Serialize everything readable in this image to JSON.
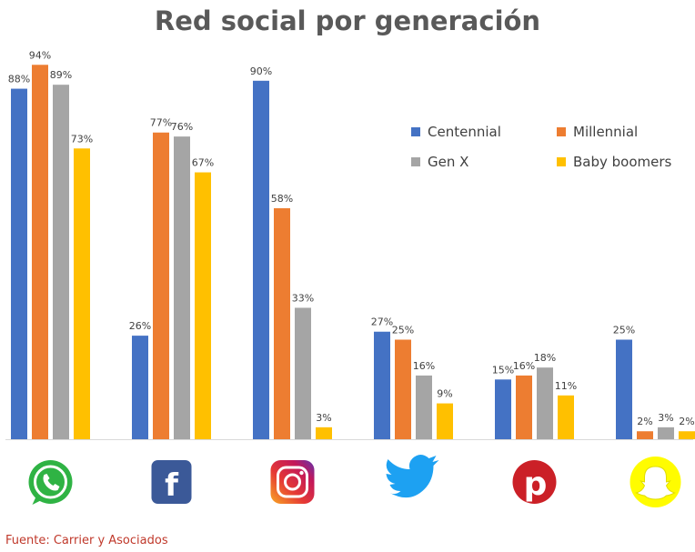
{
  "chart_data": {
    "type": "bar",
    "title": "Red social por generación",
    "categories": [
      "WhatsApp",
      "Facebook",
      "Instagram",
      "Twitter",
      "Pinterest",
      "Snapchat"
    ],
    "series": [
      {
        "name": "Centennial",
        "color": "#4472C4",
        "values": [
          88,
          26,
          90,
          27,
          15,
          25
        ]
      },
      {
        "name": "Millennial",
        "color": "#ED7D31",
        "values": [
          94,
          77,
          58,
          25,
          16,
          2
        ]
      },
      {
        "name": "Gen X",
        "color": "#A5A5A5",
        "values": [
          89,
          76,
          33,
          16,
          18,
          3
        ]
      },
      {
        "name": "Baby boomers",
        "color": "#FFC000",
        "values": [
          73,
          67,
          3,
          9,
          11,
          2
        ]
      }
    ],
    "value_suffix": "%",
    "ylim": [
      0,
      100
    ],
    "grid": false,
    "legend_position": "top-right",
    "category_icons": [
      "whatsapp-icon",
      "facebook-icon",
      "instagram-icon",
      "twitter-icon",
      "pinterest-icon",
      "snapchat-icon"
    ]
  },
  "source": "Fuente: Carrier y Asociados"
}
